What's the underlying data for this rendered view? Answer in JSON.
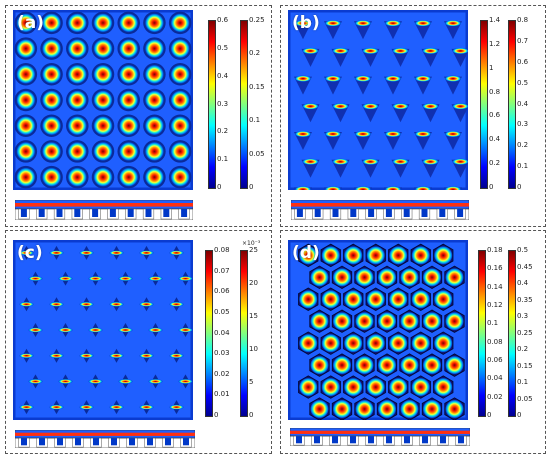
{
  "panels": [
    {
      "id": "a",
      "label": "(a)",
      "pattern": "circle",
      "scales": [
        {
          "ticks": [
            "0",
            "0.1",
            "0.2",
            "0.3",
            "0.4",
            "0.5",
            "0.6"
          ]
        },
        {
          "ticks": [
            "0",
            "0.05",
            "0.1",
            "0.15",
            "0.2",
            "0.25"
          ]
        }
      ]
    },
    {
      "id": "b",
      "label": "(b)",
      "pattern": "triangle",
      "scales": [
        {
          "ticks": [
            "0",
            "0.2",
            "0.4",
            "0.6",
            "0.8",
            "1",
            "1.2",
            "1.4"
          ]
        },
        {
          "ticks": [
            "0",
            "0.1",
            "0.2",
            "0.3",
            "0.4",
            "0.5",
            "0.6",
            "0.7",
            "0.8"
          ]
        }
      ]
    },
    {
      "id": "c",
      "label": "(c)",
      "pattern": "diamond",
      "scales": [
        {
          "ticks": [
            "0",
            "0.01",
            "0.02",
            "0.03",
            "0.04",
            "0.05",
            "0.06",
            "0.07",
            "0.08"
          ]
        },
        {
          "ticks": [
            "0",
            "5",
            "10",
            "15",
            "20",
            "25"
          ],
          "exponent": "×10⁻³"
        }
      ]
    },
    {
      "id": "d",
      "label": "(d)",
      "pattern": "hexagon",
      "scales": [
        {
          "ticks": [
            "0",
            "0.02",
            "0.04",
            "0.06",
            "0.08",
            "0.1",
            "0.12",
            "0.14",
            "0.16",
            "0.18"
          ]
        },
        {
          "ticks": [
            "0",
            "0.05",
            "0.1",
            "0.15",
            "0.2",
            "0.25",
            "0.3",
            "0.35",
            "0.4",
            "0.45",
            "0.5"
          ]
        }
      ]
    }
  ],
  "colors": {
    "field_bg": "#1f5fff",
    "jet": [
      "#00008f",
      "#0000ff",
      "#0080ff",
      "#00ffff",
      "#80ff80",
      "#ffff00",
      "#ff8000",
      "#ff0000",
      "#800000"
    ]
  }
}
